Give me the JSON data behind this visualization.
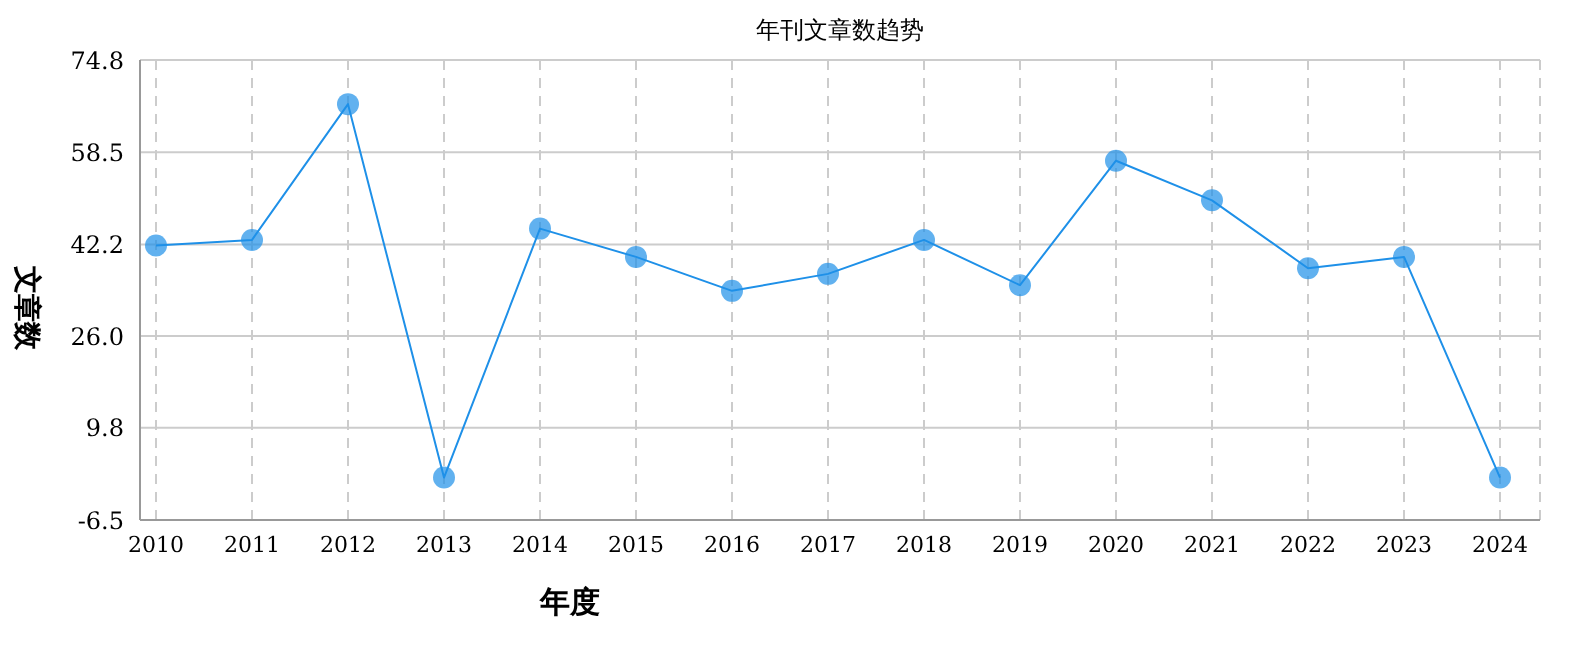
{
  "chart_data": {
    "type": "line",
    "title": "年刊文章数趋势",
    "xlabel": "年度",
    "ylabel": "文章数",
    "categories": [
      "2010",
      "2011",
      "2012",
      "2013",
      "2014",
      "2015",
      "2016",
      "2017",
      "2018",
      "2019",
      "2020",
      "2021",
      "2022",
      "2023",
      "2024"
    ],
    "series": [
      {
        "color": "#1e90e8",
        "values": [
          42,
          43,
          67,
          1,
          45,
          40,
          34,
          37,
          43,
          35,
          57,
          50,
          38,
          40,
          1
        ]
      }
    ],
    "ylim": [
      -6.5,
      74.8
    ],
    "yticks": [
      -6.5,
      9.8,
      {
        "value": 26,
        "label": "26.0"
      },
      42.2,
      58.5,
      74.8
    ],
    "grid": true,
    "marker": "circle",
    "line_style": "solid",
    "legend": false
  }
}
